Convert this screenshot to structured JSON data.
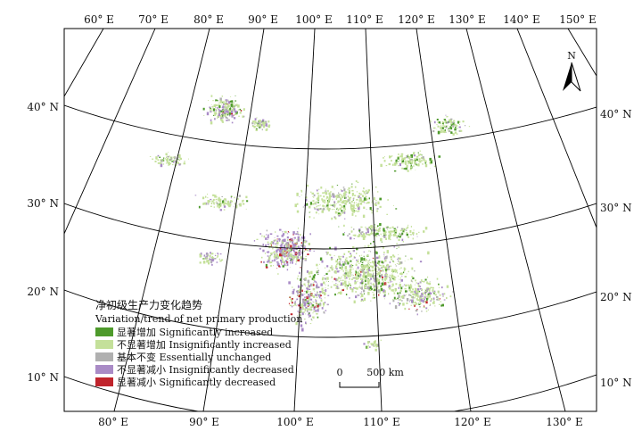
{
  "map": {
    "top_lon_labels": [
      "60° E",
      "70° E",
      "80° E",
      "90° E",
      "100° E",
      "110° E",
      "120° E",
      "130° E",
      "140° E",
      "150° E"
    ],
    "bottom_lon_labels": [
      "80° E",
      "90° E",
      "100° E",
      "110° E",
      "120° E",
      "130° E"
    ],
    "left_lat_labels": [
      "40° N",
      "30° N",
      "20° N",
      "10° N"
    ],
    "right_lat_labels": [
      "40° N",
      "30° N",
      "20° N",
      "10° N"
    ],
    "north_label": "N"
  },
  "legend": {
    "title_cn": "净初级生产力变化趋势",
    "title_en": "Variation/trend of net primary production",
    "items": [
      {
        "label": "显著增加 Significantly increased",
        "color": "#4e9a2c"
      },
      {
        "label": "不显著增加 Insignificantly increased",
        "color": "#c4e09a"
      },
      {
        "label": "基本不变 Essentially unchanged",
        "color": "#b0b0b0"
      },
      {
        "label": "不显著减小 Insignificantly decreased",
        "color": "#a98bc6"
      },
      {
        "label": "显著减小 Significantly decreased",
        "color": "#c0242c"
      }
    ]
  },
  "scale": {
    "zero": "0",
    "end": "500 km"
  }
}
